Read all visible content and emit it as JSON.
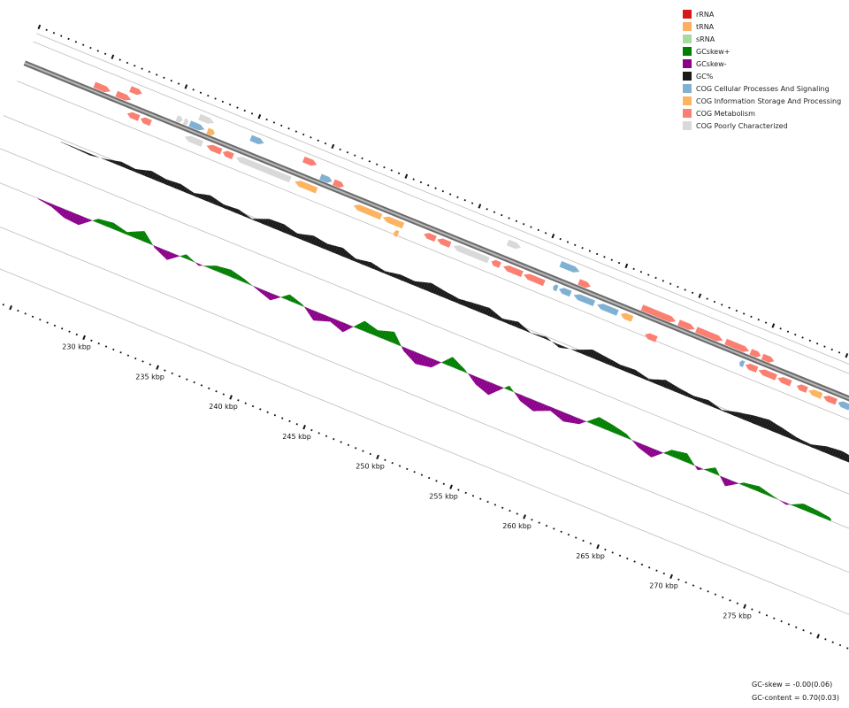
{
  "legend": [
    {
      "label": "rRNA",
      "color": "#d7191c"
    },
    {
      "label": "tRNA",
      "color": "#fdae61"
    },
    {
      "label": "sRNA",
      "color": "#a6dba0"
    },
    {
      "label": "GCskew+",
      "color": "#008000"
    },
    {
      "label": "GCskew-",
      "color": "#8b008b"
    },
    {
      "label": "GC%",
      "color": "#1a1a1a"
    },
    {
      "label": "COG Cellular Processes And Signaling",
      "color": "#80b1d3"
    },
    {
      "label": "COG Information Storage And Processing",
      "color": "#fdb462"
    },
    {
      "label": "COG Metabolism",
      "color": "#fb8072"
    },
    {
      "label": "COG Poorly Characterized",
      "color": "#d9d9d9"
    }
  ],
  "stats": {
    "gc_skew": "GC-skew = -0.00(0.06)",
    "gc_content": "GC-content = 0.70(0.03)"
  },
  "ticks": {
    "labels": [
      "230 kbp",
      "235 kbp",
      "240 kbp",
      "245 kbp",
      "250 kbp",
      "255 kbp",
      "260 kbp",
      "265 kbp",
      "270 kbp",
      "275 kbp"
    ]
  },
  "genes": {
    "forward": [
      {
        "c": "#fb8072",
        "from": 226.8,
        "to": 227.6,
        "dir": 1
      },
      {
        "c": "#fb8072",
        "from": 238.6,
        "to": 239.5,
        "dir": 1
      },
      {
        "c": "#80b1d3",
        "from": 235.0,
        "to": 235.9,
        "dir": 1
      },
      {
        "c": "#d9d9d9",
        "from": 231.5,
        "to": 232.5,
        "dir": 1
      },
      {
        "c": "#d9d9d9",
        "from": 252.5,
        "to": 253.4,
        "dir": 1
      },
      {
        "c": "#80b1d3",
        "from": 256.1,
        "to": 257.4,
        "dir": 1
      }
    ],
    "forwardInner": [
      {
        "c": "#fb8072",
        "from": 224.6,
        "to": 225.7,
        "dir": 1
      },
      {
        "c": "#fb8072",
        "from": 226.1,
        "to": 227.1,
        "dir": 1
      },
      {
        "c": "#d9d9d9",
        "from": 230.2,
        "to": 230.6,
        "dir": 1
      },
      {
        "c": "#d9d9d9",
        "from": 230.7,
        "to": 231.0,
        "dir": 1
      },
      {
        "c": "#80b1d3",
        "from": 231.1,
        "to": 232.1,
        "dir": 1
      },
      {
        "c": "#fdb462",
        "from": 232.3,
        "to": 232.8,
        "dir": 1
      },
      {
        "c": "#80b1d3",
        "from": 240.0,
        "to": 240.8,
        "dir": 1
      },
      {
        "c": "#fb8072",
        "from": 240.9,
        "to": 241.6,
        "dir": 1
      },
      {
        "c": "#fb8072",
        "from": 257.6,
        "to": 258.4,
        "dir": 1
      },
      {
        "c": "#fb8072",
        "from": 261.9,
        "to": 264.2,
        "dir": 1
      },
      {
        "c": "#fb8072",
        "from": 264.4,
        "to": 265.5,
        "dir": 1
      },
      {
        "c": "#fb8072",
        "from": 265.6,
        "to": 267.4,
        "dir": 1
      },
      {
        "c": "#fb8072",
        "from": 267.6,
        "to": 269.2,
        "dir": 1
      },
      {
        "c": "#fb8072",
        "from": 269.3,
        "to": 270.0,
        "dir": 1
      },
      {
        "c": "#fb8072",
        "from": 270.1,
        "to": 270.9,
        "dir": 1
      }
    ],
    "reverseInner": [
      {
        "c": "#fb8072",
        "from": 227.2,
        "to": 228.0,
        "dir": -1
      },
      {
        "c": "#fb8072",
        "from": 228.1,
        "to": 228.8,
        "dir": -1
      },
      {
        "c": "#d9d9d9",
        "from": 231.1,
        "to": 232.3,
        "dir": -1
      },
      {
        "c": "#fb8072",
        "from": 232.6,
        "to": 233.6,
        "dir": -1
      },
      {
        "c": "#fb8072",
        "from": 233.7,
        "to": 234.4,
        "dir": -1
      },
      {
        "c": "#d9d9d9",
        "from": 234.6,
        "to": 238.3,
        "dir": -1
      },
      {
        "c": "#fdb462",
        "from": 238.6,
        "to": 240.1,
        "dir": -1
      },
      {
        "c": "#fdb462",
        "from": 242.6,
        "to": 244.5,
        "dir": -1
      },
      {
        "c": "#fdb462",
        "from": 244.6,
        "to": 246.0,
        "dir": -1
      },
      {
        "c": "#fb8072",
        "from": 247.4,
        "to": 248.2,
        "dir": -1
      },
      {
        "c": "#fb8072",
        "from": 248.3,
        "to": 249.2,
        "dir": -1
      },
      {
        "c": "#d9d9d9",
        "from": 249.4,
        "to": 251.8,
        "dir": -1
      },
      {
        "c": "#fb8072",
        "from": 252.0,
        "to": 252.6,
        "dir": -1
      },
      {
        "c": "#fb8072",
        "from": 252.8,
        "to": 254.1,
        "dir": -1
      },
      {
        "c": "#fb8072",
        "from": 254.2,
        "to": 255.6,
        "dir": -1
      },
      {
        "c": "#80b1d3",
        "from": 256.2,
        "to": 256.5,
        "dir": -1
      },
      {
        "c": "#80b1d3",
        "from": 256.6,
        "to": 257.4,
        "dir": -1
      },
      {
        "c": "#80b1d3",
        "from": 257.6,
        "to": 259.0,
        "dir": -1
      },
      {
        "c": "#80b1d3",
        "from": 259.2,
        "to": 260.6,
        "dir": -1
      },
      {
        "c": "#fdb462",
        "from": 260.8,
        "to": 261.6,
        "dir": -1
      },
      {
        "c": "#80b1d3",
        "from": 268.9,
        "to": 269.2,
        "dir": -1
      },
      {
        "c": "#fb8072",
        "from": 269.3,
        "to": 270.1,
        "dir": -1
      },
      {
        "c": "#fb8072",
        "from": 270.2,
        "to": 271.4,
        "dir": -1
      },
      {
        "c": "#fb8072",
        "from": 271.5,
        "to": 272.4,
        "dir": -1
      },
      {
        "c": "#fb8072",
        "from": 272.8,
        "to": 273.5,
        "dir": -1
      },
      {
        "c": "#fdb462",
        "from": 273.6,
        "to": 274.5,
        "dir": -1
      },
      {
        "c": "#fb8072",
        "from": 274.6,
        "to": 275.5,
        "dir": -1
      },
      {
        "c": "#80b1d3",
        "from": 275.6,
        "to": 276.4,
        "dir": -1
      },
      {
        "c": "#fdb462",
        "from": 276.5,
        "to": 278.0,
        "dir": -1
      }
    ],
    "reverse": [
      {
        "c": "#fdb462",
        "from": 245.6,
        "to": 245.9,
        "dir": -1
      },
      {
        "c": "#fb8072",
        "from": 262.7,
        "to": 263.5,
        "dir": -1
      }
    ]
  },
  "gc_content": [
    [
      224.0,
      0.06
    ],
    [
      225.0,
      0.02
    ],
    [
      226.0,
      -0.05
    ],
    [
      227.0,
      0.1
    ],
    [
      228.0,
      0.32
    ],
    [
      229.0,
      0.18
    ],
    [
      230.0,
      0.46
    ],
    [
      231.0,
      0.28
    ],
    [
      232.0,
      0.35
    ],
    [
      233.0,
      0.12
    ],
    [
      234.0,
      0.42
    ],
    [
      235.0,
      0.2
    ],
    [
      236.0,
      0.3
    ],
    [
      237.0,
      0.08
    ],
    [
      238.0,
      0.55
    ],
    [
      239.0,
      0.62
    ],
    [
      240.0,
      0.38
    ],
    [
      241.0,
      0.66
    ],
    [
      242.0,
      0.48
    ],
    [
      243.0,
      0.6
    ],
    [
      244.0,
      0.2
    ],
    [
      245.0,
      0.35
    ],
    [
      246.0,
      0.1
    ],
    [
      247.0,
      0.28
    ],
    [
      248.0,
      0.22
    ],
    [
      249.0,
      0.55
    ],
    [
      250.0,
      0.4
    ],
    [
      251.0,
      0.3
    ],
    [
      252.0,
      0.45
    ],
    [
      253.0,
      0.58
    ],
    [
      254.0,
      0.25
    ],
    [
      255.0,
      0.48
    ],
    [
      256.0,
      0.1
    ],
    [
      257.0,
      0.22
    ],
    [
      258.0,
      -0.15
    ],
    [
      259.0,
      0.12
    ],
    [
      260.0,
      0.55
    ],
    [
      261.0,
      0.4
    ],
    [
      262.0,
      0.25
    ],
    [
      263.0,
      0.3
    ],
    [
      264.0,
      0.05
    ],
    [
      265.0,
      0.45
    ],
    [
      266.0,
      0.3
    ],
    [
      267.0,
      0.2
    ],
    [
      268.0,
      0.35
    ],
    [
      269.0,
      0.1
    ],
    [
      270.0,
      0.4
    ],
    [
      271.0,
      0.62
    ],
    [
      272.0,
      0.75
    ],
    [
      273.0,
      0.55
    ],
    [
      274.0,
      0.3
    ],
    [
      275.0,
      0.18
    ],
    [
      276.0,
      0.45
    ],
    [
      277.0,
      0.52
    ],
    [
      278.0,
      0.35
    ]
  ],
  "gc_skew": [
    [
      224.0,
      0.05
    ],
    [
      225.0,
      -0.1
    ],
    [
      226.0,
      -0.45
    ],
    [
      227.0,
      -0.55
    ],
    [
      228.0,
      0.25
    ],
    [
      229.0,
      0.35
    ],
    [
      230.0,
      0.1
    ],
    [
      231.0,
      0.55
    ],
    [
      232.0,
      -0.2
    ],
    [
      233.0,
      -0.6
    ],
    [
      234.0,
      0.2
    ],
    [
      235.0,
      -0.15
    ],
    [
      236.0,
      0.3
    ],
    [
      237.0,
      0.45
    ],
    [
      238.0,
      0.25
    ],
    [
      239.0,
      -0.05
    ],
    [
      240.0,
      -0.35
    ],
    [
      241.0,
      0.45
    ],
    [
      242.0,
      0.15
    ],
    [
      243.0,
      -0.55
    ],
    [
      244.0,
      -0.25
    ],
    [
      245.0,
      -0.6
    ],
    [
      246.0,
      0.55
    ],
    [
      247.0,
      0.3
    ],
    [
      248.0,
      0.6
    ],
    [
      249.0,
      -0.3
    ],
    [
      250.0,
      -0.75
    ],
    [
      251.0,
      -0.55
    ],
    [
      252.0,
      0.6
    ],
    [
      253.0,
      0.2
    ],
    [
      254.0,
      -0.4
    ],
    [
      255.0,
      -0.7
    ],
    [
      256.0,
      0.35
    ],
    [
      257.0,
      -0.3
    ],
    [
      258.0,
      -0.6
    ],
    [
      259.0,
      -0.2
    ],
    [
      260.0,
      -0.55
    ],
    [
      261.0,
      -0.35
    ],
    [
      262.0,
      0.5
    ],
    [
      263.0,
      0.35
    ],
    [
      264.0,
      0.15
    ],
    [
      265.0,
      -0.35
    ],
    [
      266.0,
      -0.6
    ],
    [
      267.0,
      0.35
    ],
    [
      268.0,
      0.55
    ],
    [
      269.0,
      -0.15
    ],
    [
      270.0,
      0.45
    ],
    [
      271.0,
      -0.4
    ],
    [
      272.0,
      0.25
    ],
    [
      273.0,
      0.4
    ],
    [
      274.0,
      0.15
    ],
    [
      275.0,
      -0.1
    ],
    [
      276.0,
      0.35
    ],
    [
      277.0,
      0.25
    ],
    [
      278.0,
      0.1
    ]
  ]
}
